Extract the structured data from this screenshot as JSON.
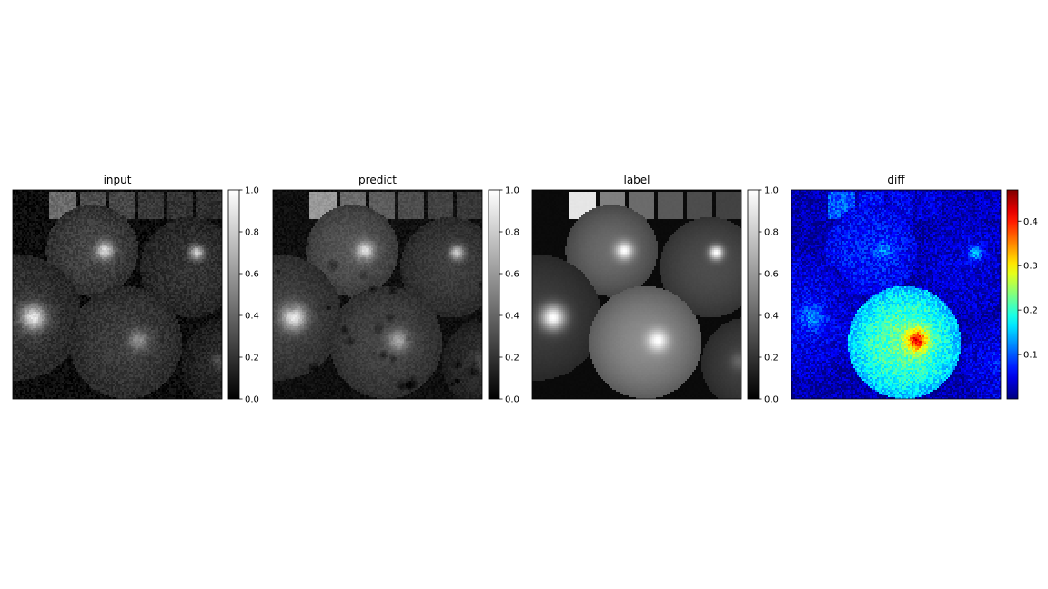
{
  "chart_data": [
    {
      "type": "heatmap",
      "title": "input",
      "colormap": "gray",
      "colorbar": {
        "ticks": [
          0.0,
          0.2,
          0.4,
          0.6,
          0.8,
          1.0
        ],
        "tick_labels": [
          "0.0",
          "0.2",
          "0.4",
          "0.6",
          "0.8",
          "1.0"
        ],
        "range": [
          0.0,
          1.0
        ]
      },
      "image": {
        "background": 0.05,
        "chart_patches": [
          0.42,
          0.3,
          0.28,
          0.22,
          0.2,
          0.18
        ],
        "balloons": [
          {
            "brightness": 0.27,
            "highlight": 0.85
          },
          {
            "brightness": 0.2,
            "highlight": 0.82
          },
          {
            "brightness": 0.22,
            "highlight": 0.9
          },
          {
            "brightness": 0.24,
            "highlight": 0.55
          },
          {
            "brightness": 0.16,
            "highlight": 0.3
          }
        ],
        "noise": 0.06,
        "blotches": 0.0
      }
    },
    {
      "type": "heatmap",
      "title": "predict",
      "colormap": "gray",
      "colorbar": {
        "ticks": [
          0.0,
          0.2,
          0.4,
          0.6,
          0.8,
          1.0
        ],
        "tick_labels": [
          "0.0",
          "0.2",
          "0.4",
          "0.6",
          "0.8",
          "1.0"
        ],
        "range": [
          0.0,
          1.0
        ]
      },
      "image": {
        "background": 0.06,
        "chart_patches": [
          0.6,
          0.42,
          0.36,
          0.3,
          0.26,
          0.22
        ],
        "balloons": [
          {
            "brightness": 0.34,
            "highlight": 0.88
          },
          {
            "brightness": 0.24,
            "highlight": 0.8
          },
          {
            "brightness": 0.26,
            "highlight": 0.92
          },
          {
            "brightness": 0.27,
            "highlight": 0.65
          },
          {
            "brightness": 0.18,
            "highlight": 0.3
          }
        ],
        "noise": 0.04,
        "blotches": 0.14
      }
    },
    {
      "type": "heatmap",
      "title": "label",
      "colormap": "gray",
      "colorbar": {
        "ticks": [
          0.0,
          0.2,
          0.4,
          0.6,
          0.8,
          1.0
        ],
        "tick_labels": [
          "0.0",
          "0.2",
          "0.4",
          "0.6",
          "0.8",
          "1.0"
        ],
        "range": [
          0.0,
          1.0
        ]
      },
      "image": {
        "background": 0.04,
        "chart_patches": [
          0.9,
          0.5,
          0.42,
          0.35,
          0.3,
          0.26
        ],
        "balloons": [
          {
            "brightness": 0.42,
            "highlight": 1.0
          },
          {
            "brightness": 0.3,
            "highlight": 1.0
          },
          {
            "brightness": 0.24,
            "highlight": 1.0
          },
          {
            "brightness": 0.55,
            "highlight": 1.0
          },
          {
            "brightness": 0.25,
            "highlight": 0.4
          }
        ],
        "noise": 0.005,
        "blotches": 0.0
      }
    },
    {
      "type": "heatmap",
      "title": "diff",
      "colormap": "jet",
      "colorbar": {
        "ticks": [
          0.1,
          0.2,
          0.3,
          0.4
        ],
        "tick_labels": [
          "0.1",
          "0.2",
          "0.3",
          "0.4"
        ],
        "range": [
          0.0,
          0.47
        ]
      },
      "image": {
        "background": 0.02,
        "chart_patches": [
          0.1,
          0.06,
          0.05,
          0.04,
          0.03,
          0.03
        ],
        "balloons": [
          {
            "brightness": 0.07,
            "highlight": 0.12
          },
          {
            "brightness": 0.04,
            "highlight": 0.16
          },
          {
            "brightness": 0.05,
            "highlight": 0.12
          },
          {
            "brightness": 0.22,
            "highlight": 0.42
          },
          {
            "brightness": 0.05,
            "highlight": 0.08
          }
        ],
        "noise": 0.035,
        "blotches": 0.0
      }
    }
  ]
}
